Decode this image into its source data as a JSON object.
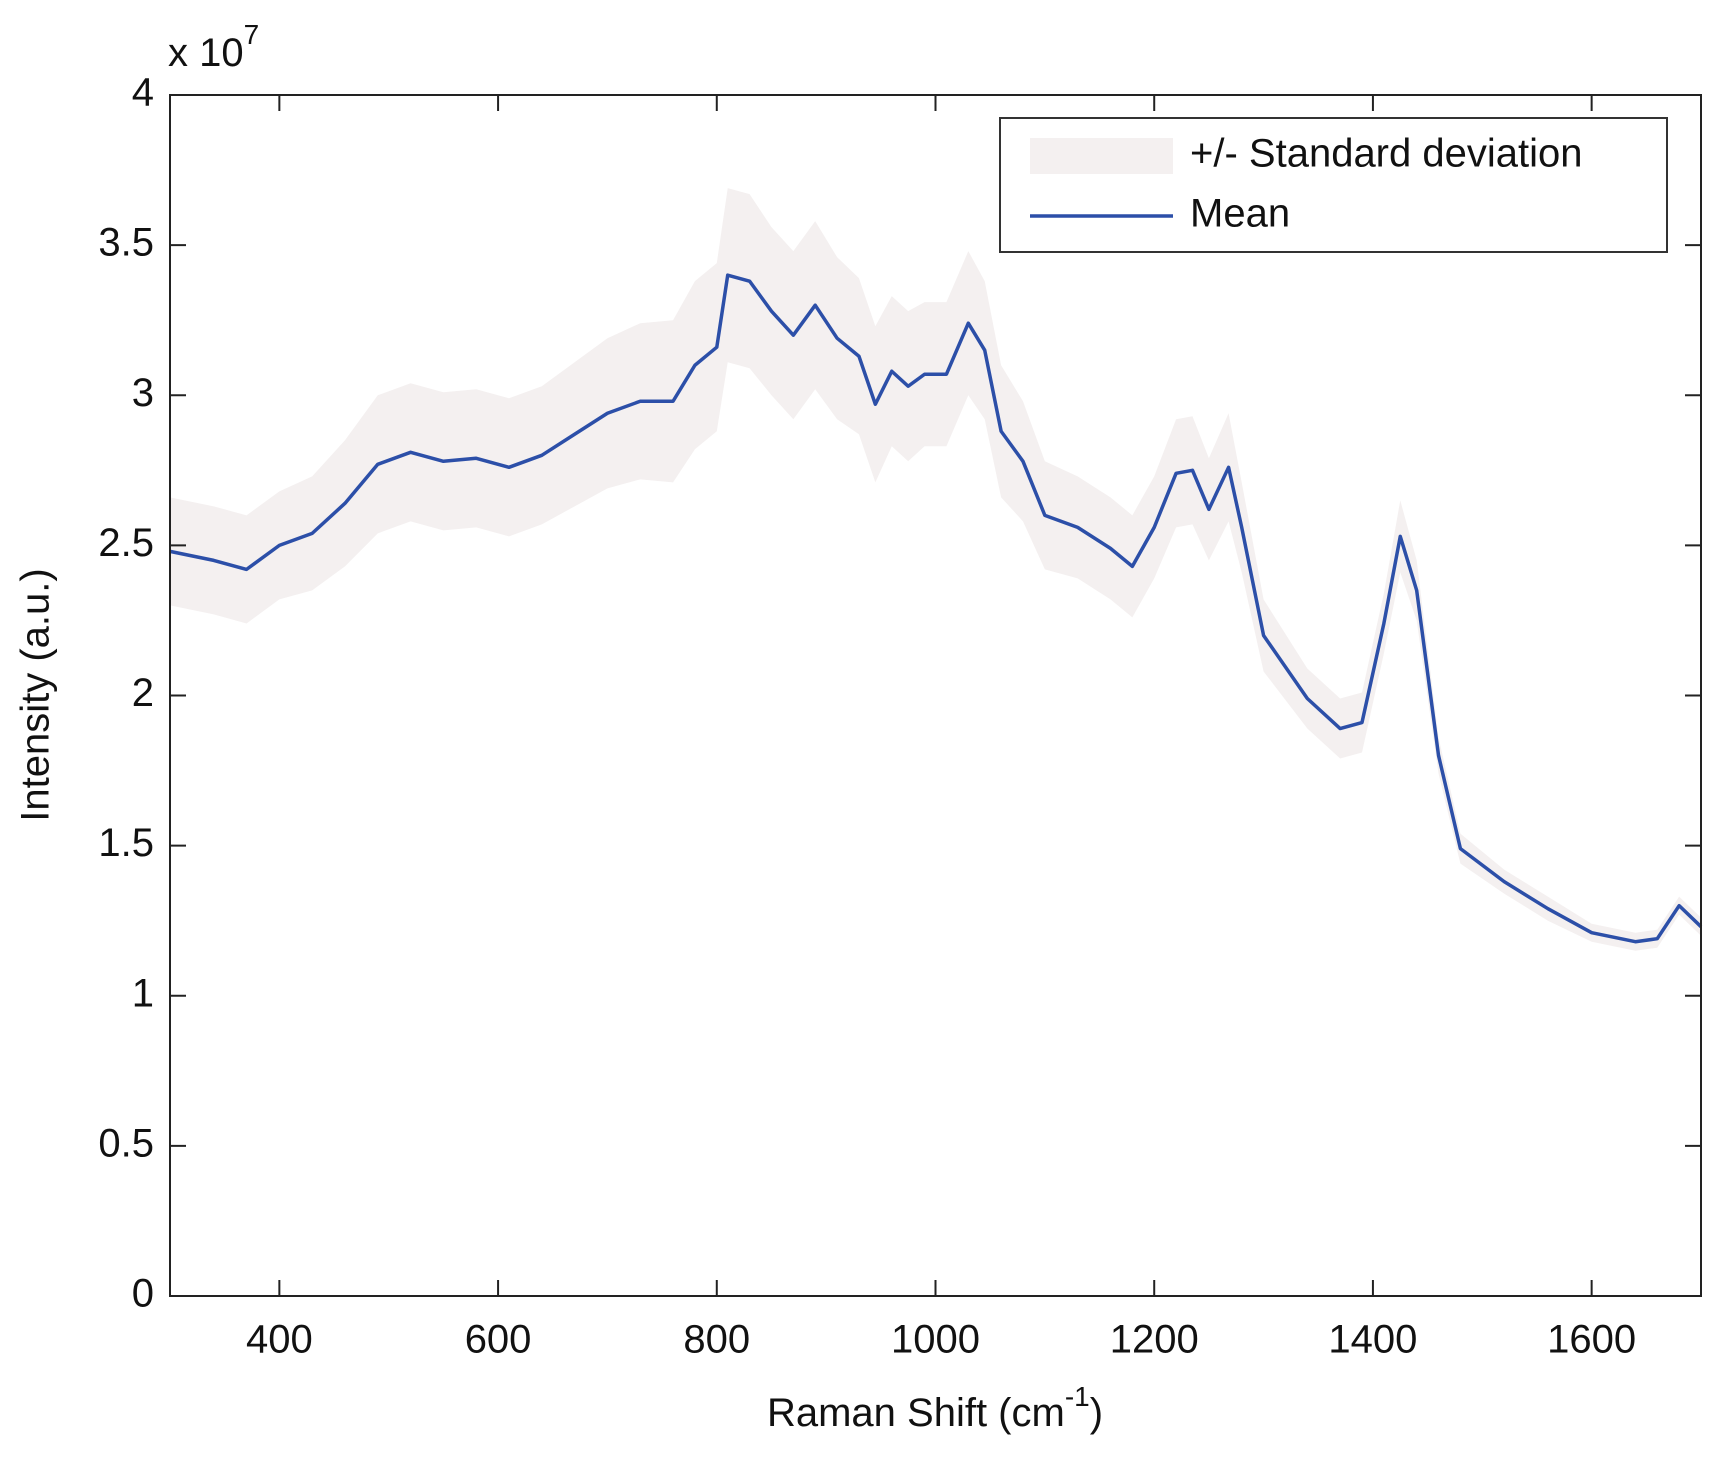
{
  "chart_data": {
    "type": "line",
    "xlabel": [
      "Raman Shift (cm",
      "-1",
      ")"
    ],
    "ylabel": "Intensity (a.u.)",
    "y_multiplier": [
      "x 10",
      "7"
    ],
    "xlim": [
      300,
      1700
    ],
    "xticks": [
      400,
      600,
      800,
      1000,
      1200,
      1400,
      1600
    ],
    "ylim": [
      0,
      4
    ],
    "yticks": [
      0,
      0.5,
      1,
      1.5,
      2,
      2.5,
      3,
      3.5,
      4
    ],
    "grid": false,
    "legend": "upper right",
    "x": [
      300,
      340,
      370,
      400,
      430,
      460,
      490,
      520,
      550,
      580,
      610,
      640,
      670,
      700,
      730,
      760,
      780,
      800,
      810,
      830,
      850,
      870,
      890,
      910,
      930,
      945,
      960,
      975,
      990,
      1010,
      1030,
      1045,
      1060,
      1080,
      1100,
      1130,
      1160,
      1180,
      1200,
      1220,
      1235,
      1250,
      1268,
      1280,
      1300,
      1340,
      1370,
      1390,
      1410,
      1425,
      1440,
      1460,
      1480,
      1520,
      1560,
      1600,
      1640,
      1660,
      1680,
      1700
    ],
    "series": [
      {
        "name": "+/- Standard deviation",
        "color": "#f4f0f0",
        "upper": [
          2.66,
          2.63,
          2.6,
          2.68,
          2.73,
          2.85,
          3.0,
          3.04,
          3.01,
          3.02,
          2.99,
          3.03,
          3.11,
          3.19,
          3.24,
          3.25,
          3.38,
          3.44,
          3.69,
          3.67,
          3.56,
          3.48,
          3.58,
          3.46,
          3.39,
          3.23,
          3.33,
          3.28,
          3.31,
          3.31,
          3.48,
          3.38,
          3.1,
          2.98,
          2.78,
          2.73,
          2.66,
          2.6,
          2.73,
          2.92,
          2.93,
          2.79,
          2.94,
          2.71,
          2.32,
          2.09,
          1.99,
          2.01,
          2.34,
          2.65,
          2.45,
          1.86,
          1.54,
          1.42,
          1.33,
          1.24,
          1.21,
          1.22,
          1.33,
          1.26
        ],
        "lower": [
          2.3,
          2.27,
          2.24,
          2.32,
          2.35,
          2.43,
          2.54,
          2.58,
          2.55,
          2.56,
          2.53,
          2.57,
          2.63,
          2.69,
          2.72,
          2.71,
          2.82,
          2.88,
          3.11,
          3.09,
          3.0,
          2.92,
          3.02,
          2.92,
          2.87,
          2.71,
          2.83,
          2.78,
          2.83,
          2.83,
          3.0,
          2.92,
          2.66,
          2.58,
          2.42,
          2.39,
          2.32,
          2.26,
          2.39,
          2.56,
          2.57,
          2.45,
          2.58,
          2.41,
          2.08,
          1.89,
          1.79,
          1.81,
          2.14,
          2.41,
          2.25,
          1.74,
          1.44,
          1.34,
          1.25,
          1.18,
          1.15,
          1.16,
          1.27,
          1.2
        ]
      },
      {
        "name": "Mean",
        "color": "#2c4fa8",
        "values": [
          2.48,
          2.45,
          2.42,
          2.5,
          2.54,
          2.64,
          2.77,
          2.81,
          2.78,
          2.79,
          2.76,
          2.8,
          2.87,
          2.94,
          2.98,
          2.98,
          3.1,
          3.16,
          3.4,
          3.38,
          3.28,
          3.2,
          3.3,
          3.19,
          3.13,
          2.97,
          3.08,
          3.03,
          3.07,
          3.07,
          3.24,
          3.15,
          2.88,
          2.78,
          2.6,
          2.56,
          2.49,
          2.43,
          2.56,
          2.74,
          2.75,
          2.62,
          2.76,
          2.56,
          2.2,
          1.99,
          1.89,
          1.91,
          2.24,
          2.53,
          2.35,
          1.8,
          1.49,
          1.38,
          1.29,
          1.21,
          1.18,
          1.19,
          1.3,
          1.23
        ]
      }
    ]
  }
}
